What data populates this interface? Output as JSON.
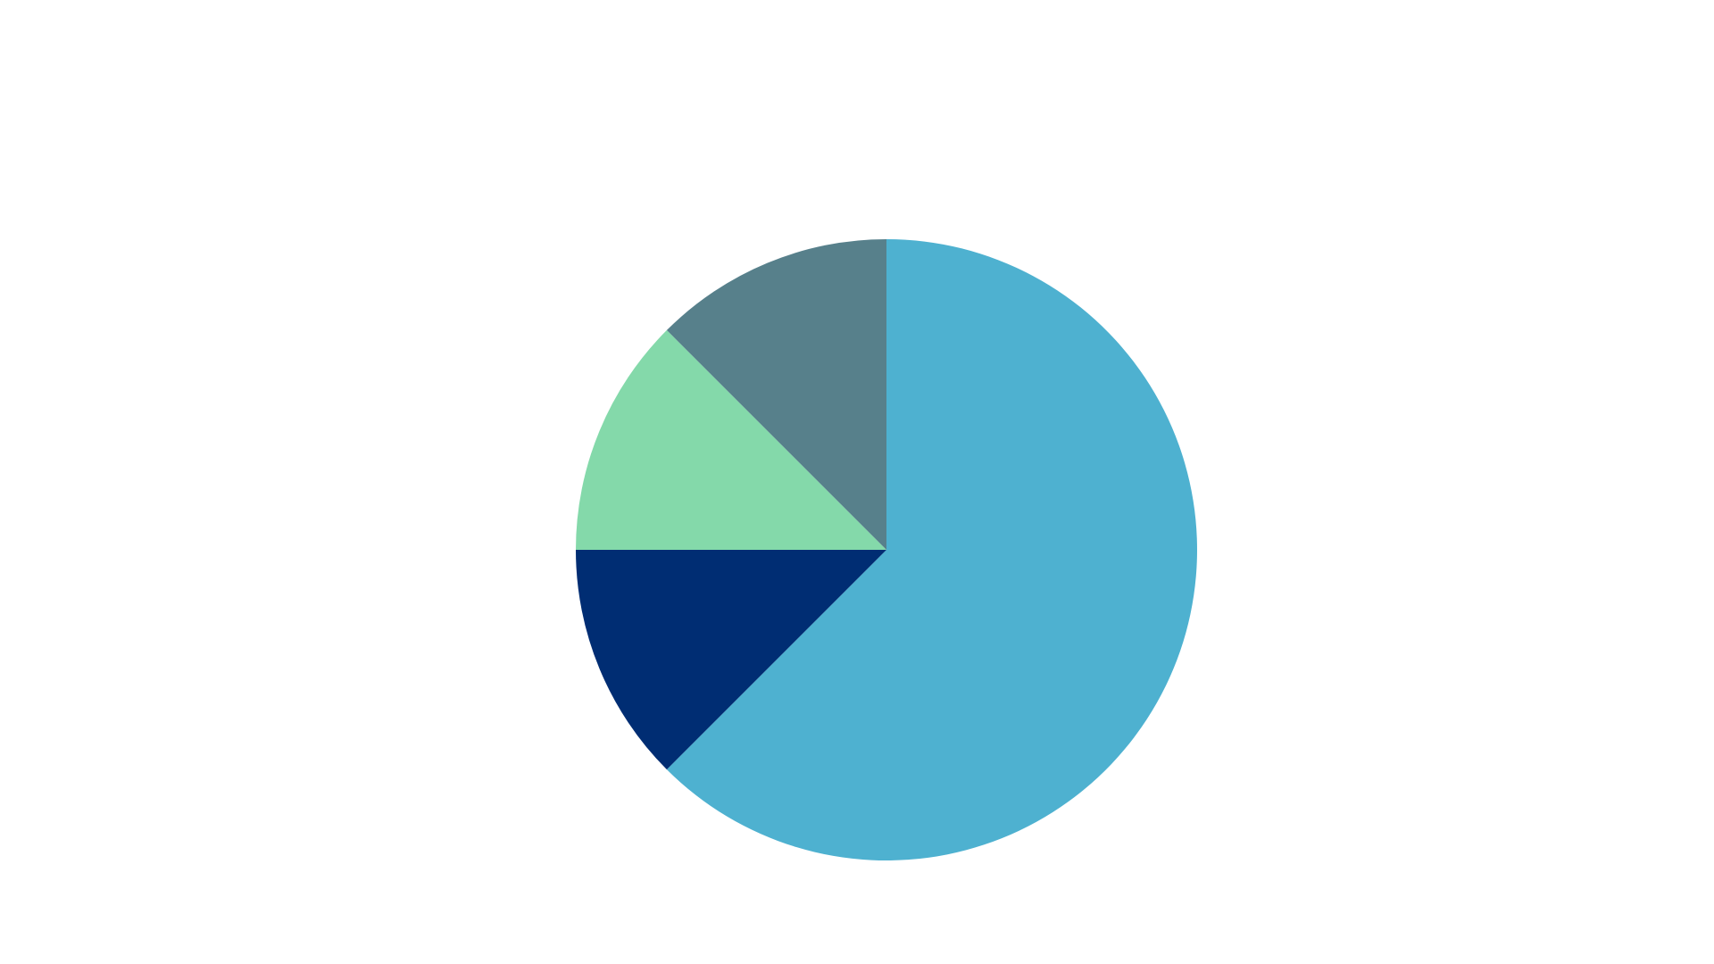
{
  "chart_data": {
    "type": "pie",
    "values": [
      62.5,
      12.5,
      12.5,
      12.5
    ],
    "colors": [
      "#4eb1d0",
      "#002d73",
      "#84d9aa",
      "#57808b"
    ],
    "start_angle": 90,
    "direction": "clockwise"
  }
}
